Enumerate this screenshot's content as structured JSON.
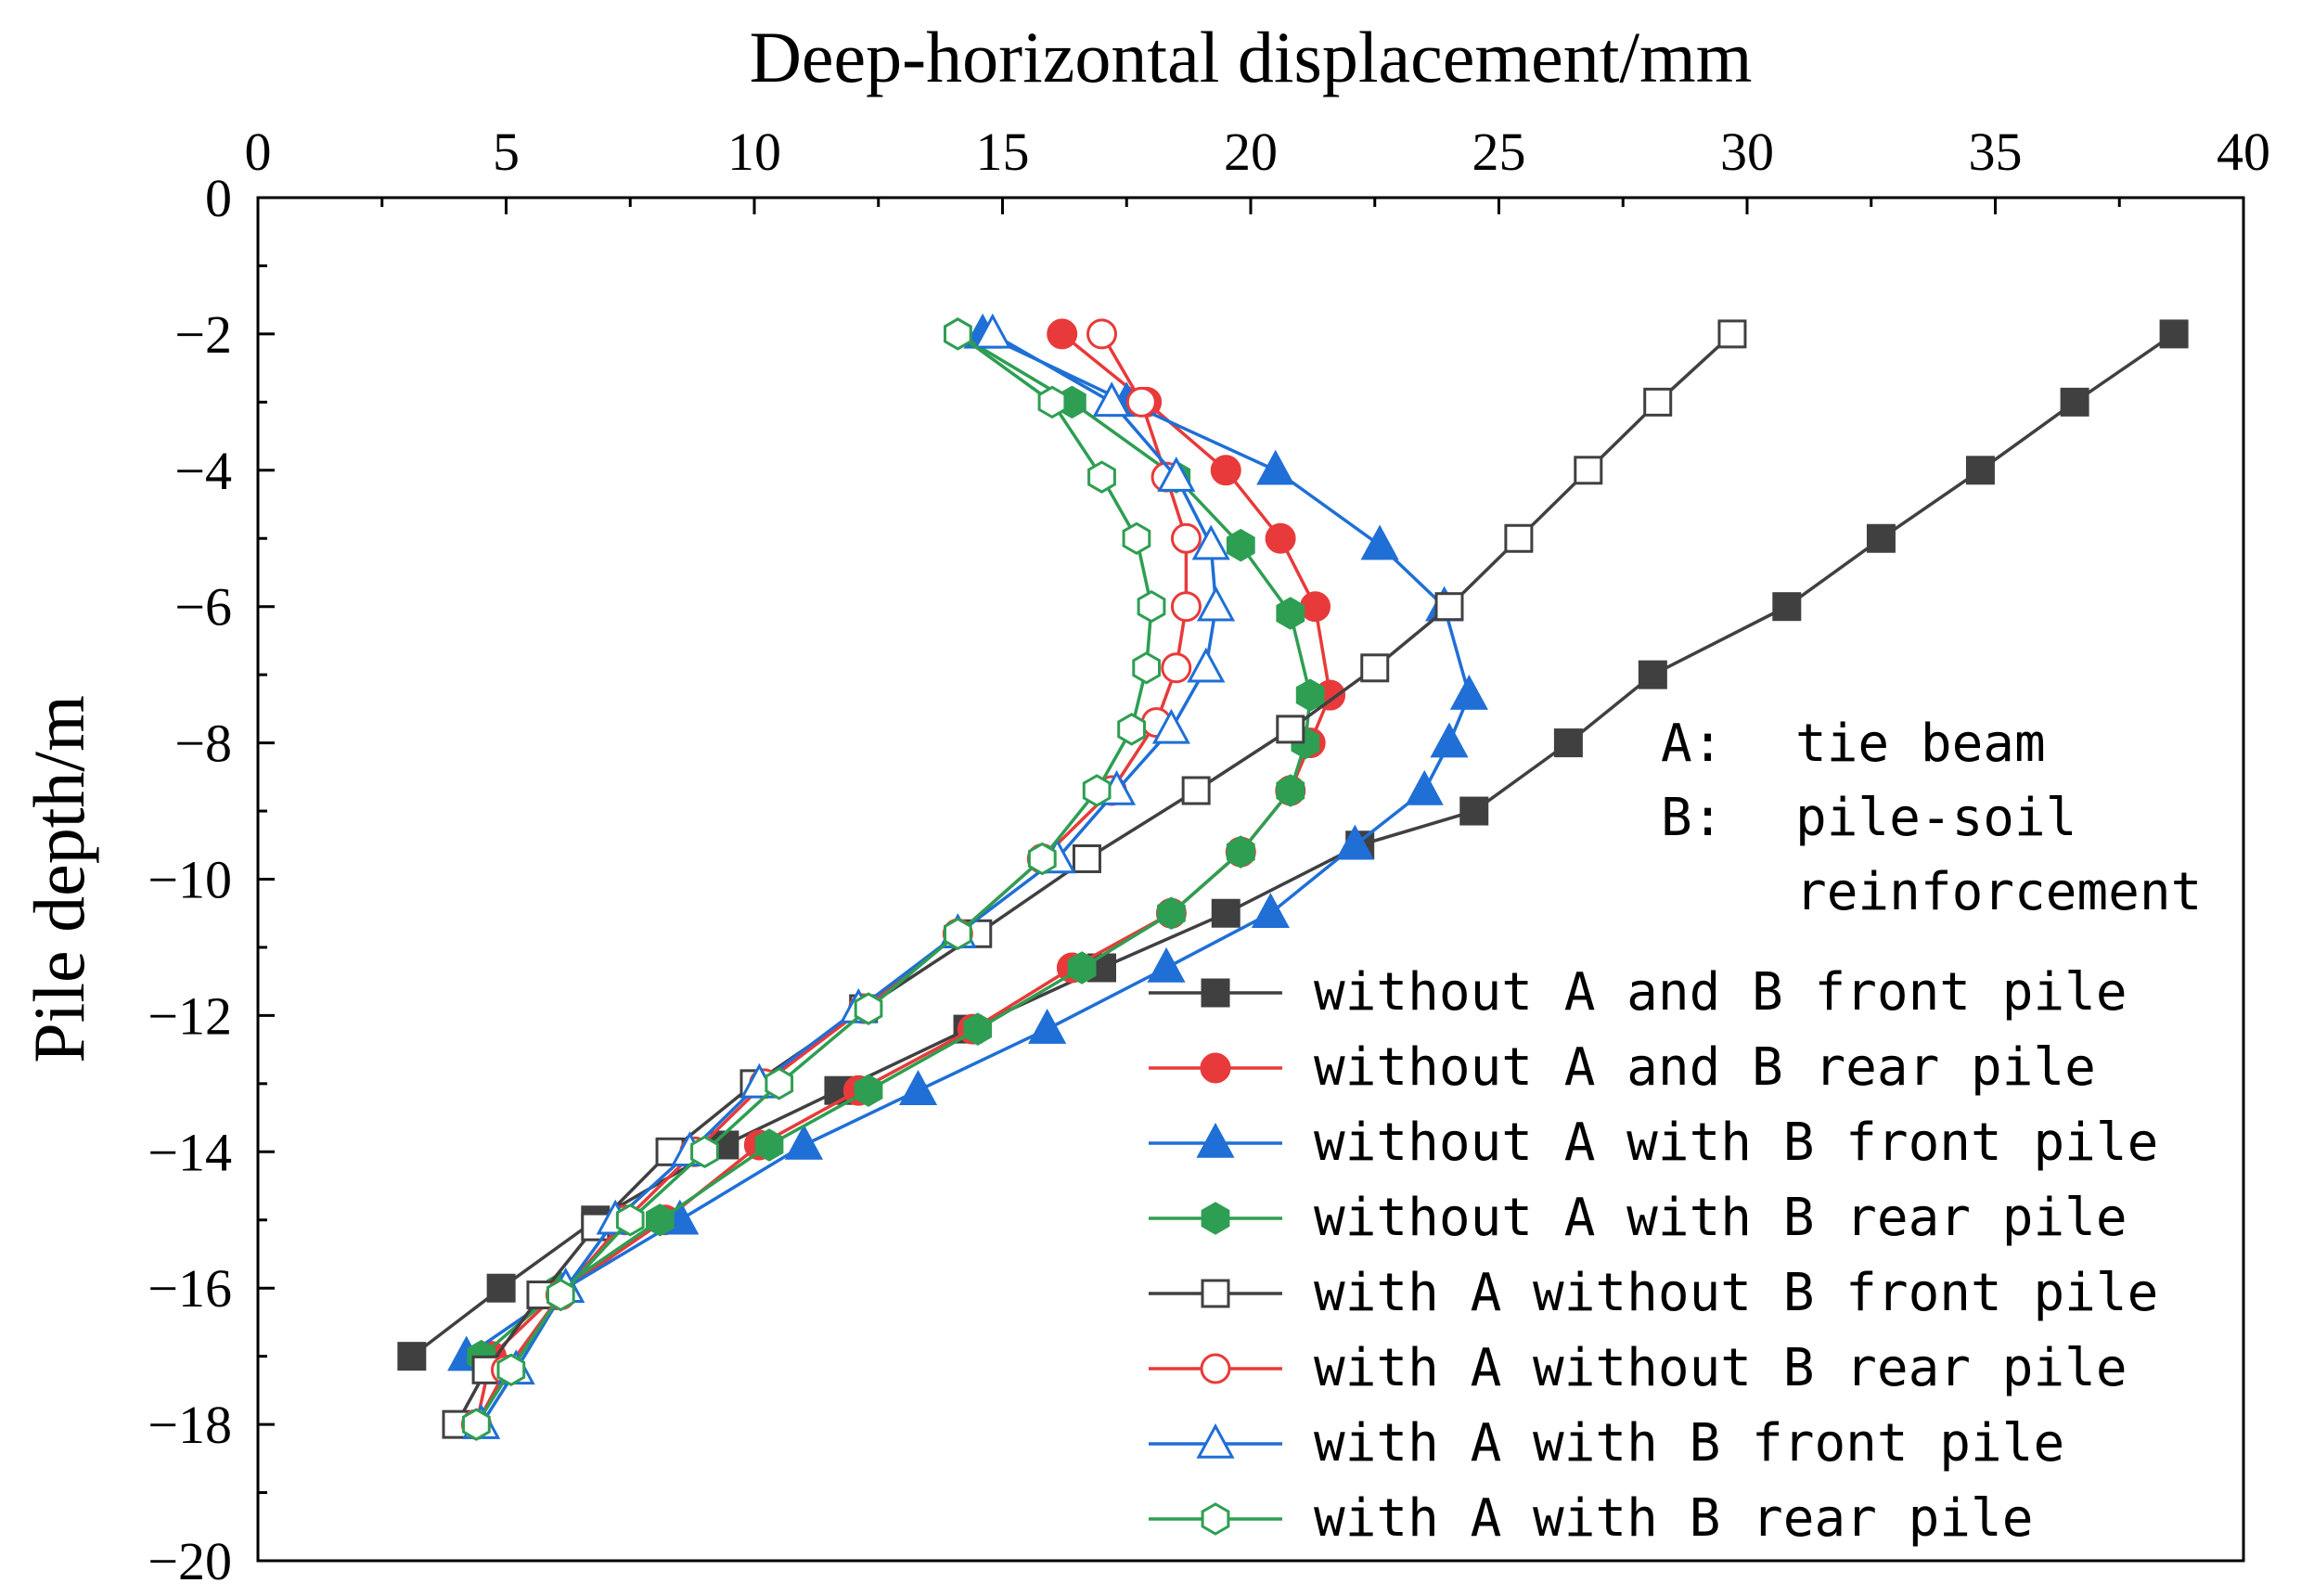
{
  "chart_data": {
    "type": "line",
    "title": "",
    "xlabel": "Deep-horizontal displacement/mm",
    "ylabel": "Pile depth/m",
    "xlim": [
      0,
      40
    ],
    "ylim": [
      -20,
      0
    ],
    "xticks": [
      0,
      5,
      10,
      15,
      20,
      25,
      30,
      35,
      40
    ],
    "yticks": [
      0,
      -2,
      -4,
      -6,
      -8,
      -10,
      -12,
      -14,
      -16,
      -18,
      -20
    ],
    "x_axis_position": "top",
    "grid": false,
    "legend_position": "bottom-right",
    "notes": [
      {
        "key": "A:",
        "text": "tie beam"
      },
      {
        "key": "B:",
        "text": "pile-soil",
        "text2": "reinforcement"
      }
    ],
    "series": [
      {
        "name": "without A and B front pile",
        "color": "#404040",
        "marker": "square",
        "filled": true,
        "points": [
          [
            38.6,
            -2
          ],
          [
            36.6,
            -3
          ],
          [
            34.7,
            -4
          ],
          [
            32.7,
            -5
          ],
          [
            30.8,
            -6
          ],
          [
            28.1,
            -7
          ],
          [
            26.4,
            -8
          ],
          [
            24.5,
            -9
          ],
          [
            22.2,
            -9.5
          ],
          [
            19.5,
            -10.5
          ],
          [
            17.0,
            -11.3
          ],
          [
            14.3,
            -12.2
          ],
          [
            11.7,
            -13.1
          ],
          [
            9.4,
            -13.9
          ],
          [
            6.8,
            -15
          ],
          [
            4.9,
            -16
          ],
          [
            3.1,
            -17
          ]
        ]
      },
      {
        "name": "without A and B rear pile",
        "color": "#e83a3a",
        "marker": "circle",
        "filled": true,
        "points": [
          [
            16.2,
            -2
          ],
          [
            17.9,
            -3
          ],
          [
            19.5,
            -4
          ],
          [
            20.6,
            -5
          ],
          [
            21.3,
            -6
          ],
          [
            21.6,
            -7.3
          ],
          [
            21.2,
            -8
          ],
          [
            20.8,
            -8.7
          ],
          [
            19.8,
            -9.6
          ],
          [
            18.4,
            -10.5
          ],
          [
            16.4,
            -11.3
          ],
          [
            14.4,
            -12.2
          ],
          [
            12.1,
            -13.1
          ],
          [
            10.1,
            -13.9
          ],
          [
            8.2,
            -15
          ],
          [
            6.0,
            -16.1
          ],
          [
            4.7,
            -17
          ],
          [
            4.4,
            -18
          ]
        ]
      },
      {
        "name": "without A with B front pile",
        "color": "#1f6fd6",
        "marker": "triangle",
        "filled": true,
        "points": [
          [
            14.6,
            -2
          ],
          [
            17.5,
            -3
          ],
          [
            20.5,
            -4
          ],
          [
            22.6,
            -5.1
          ],
          [
            23.9,
            -6
          ],
          [
            24.4,
            -7.3
          ],
          [
            24.0,
            -8
          ],
          [
            23.5,
            -8.7
          ],
          [
            22.1,
            -9.5
          ],
          [
            20.4,
            -10.5
          ],
          [
            18.3,
            -11.3
          ],
          [
            15.9,
            -12.2
          ],
          [
            13.3,
            -13.1
          ],
          [
            11.0,
            -13.9
          ],
          [
            8.5,
            -15
          ],
          [
            6.2,
            -16
          ],
          [
            4.2,
            -17
          ]
        ]
      },
      {
        "name": "without A with B rear pile",
        "color": "#2e9e52",
        "marker": "hexagon",
        "filled": true,
        "points": [
          [
            14.1,
            -2
          ],
          [
            16.4,
            -3
          ],
          [
            18.5,
            -4.1
          ],
          [
            19.8,
            -5.1
          ],
          [
            20.8,
            -6.1
          ],
          [
            21.2,
            -7.3
          ],
          [
            21.1,
            -8
          ],
          [
            20.8,
            -8.7
          ],
          [
            19.8,
            -9.6
          ],
          [
            18.4,
            -10.5
          ],
          [
            16.6,
            -11.3
          ],
          [
            14.5,
            -12.2
          ],
          [
            12.3,
            -13.1
          ],
          [
            10.3,
            -13.9
          ],
          [
            8.1,
            -15
          ],
          [
            6.1,
            -16
          ],
          [
            4.5,
            -17
          ]
        ]
      },
      {
        "name": "with A without B front pile",
        "color": "#404040",
        "marker": "square",
        "filled": false,
        "points": [
          [
            29.7,
            -2
          ],
          [
            28.2,
            -3
          ],
          [
            26.8,
            -4
          ],
          [
            25.4,
            -5
          ],
          [
            24.0,
            -6
          ],
          [
            22.5,
            -6.9
          ],
          [
            20.8,
            -7.8
          ],
          [
            18.9,
            -8.7
          ],
          [
            16.7,
            -9.7
          ],
          [
            14.5,
            -10.8
          ],
          [
            12.2,
            -11.9
          ],
          [
            10.0,
            -13
          ],
          [
            8.3,
            -14
          ],
          [
            6.8,
            -15.1
          ],
          [
            5.7,
            -16.1
          ],
          [
            4.6,
            -17.2
          ],
          [
            4.0,
            -18
          ]
        ]
      },
      {
        "name": "with A without B rear pile",
        "color": "#e83a3a",
        "marker": "circle",
        "filled": false,
        "points": [
          [
            17.0,
            -2
          ],
          [
            17.8,
            -3
          ],
          [
            18.3,
            -4.1
          ],
          [
            18.7,
            -5
          ],
          [
            18.7,
            -6
          ],
          [
            18.5,
            -6.9
          ],
          [
            18.1,
            -7.7
          ],
          [
            17.2,
            -8.7
          ],
          [
            15.8,
            -9.7
          ],
          [
            14.1,
            -10.8
          ],
          [
            12.2,
            -11.9
          ],
          [
            10.2,
            -13
          ],
          [
            8.8,
            -14
          ],
          [
            7.4,
            -15
          ],
          [
            6.1,
            -16.1
          ],
          [
            5.0,
            -17.2
          ],
          [
            4.4,
            -18
          ]
        ]
      },
      {
        "name": "with A with B front pile",
        "color": "#1f6fd6",
        "marker": "triangle",
        "filled": false,
        "points": [
          [
            14.8,
            -2
          ],
          [
            17.2,
            -3
          ],
          [
            18.5,
            -4.1
          ],
          [
            19.2,
            -5.1
          ],
          [
            19.3,
            -6
          ],
          [
            19.1,
            -6.9
          ],
          [
            18.4,
            -7.8
          ],
          [
            17.3,
            -8.7
          ],
          [
            16.1,
            -9.7
          ],
          [
            14.1,
            -10.8
          ],
          [
            12.1,
            -11.9
          ],
          [
            10.1,
            -13
          ],
          [
            8.7,
            -14
          ],
          [
            7.2,
            -15
          ],
          [
            6.2,
            -16
          ],
          [
            5.2,
            -17.2
          ],
          [
            4.5,
            -18
          ]
        ]
      },
      {
        "name": "with A with B rear pile",
        "color": "#2e9e52",
        "marker": "hexagon",
        "filled": false,
        "points": [
          [
            14.1,
            -2
          ],
          [
            16.0,
            -3
          ],
          [
            17.0,
            -4.1
          ],
          [
            17.7,
            -5
          ],
          [
            18.0,
            -6
          ],
          [
            17.9,
            -6.9
          ],
          [
            17.6,
            -7.8
          ],
          [
            16.9,
            -8.7
          ],
          [
            15.8,
            -9.7
          ],
          [
            14.1,
            -10.8
          ],
          [
            12.3,
            -11.9
          ],
          [
            10.5,
            -13
          ],
          [
            9.0,
            -14
          ],
          [
            7.5,
            -15
          ],
          [
            6.1,
            -16.1
          ],
          [
            5.1,
            -17.2
          ],
          [
            4.4,
            -18
          ]
        ]
      }
    ]
  }
}
